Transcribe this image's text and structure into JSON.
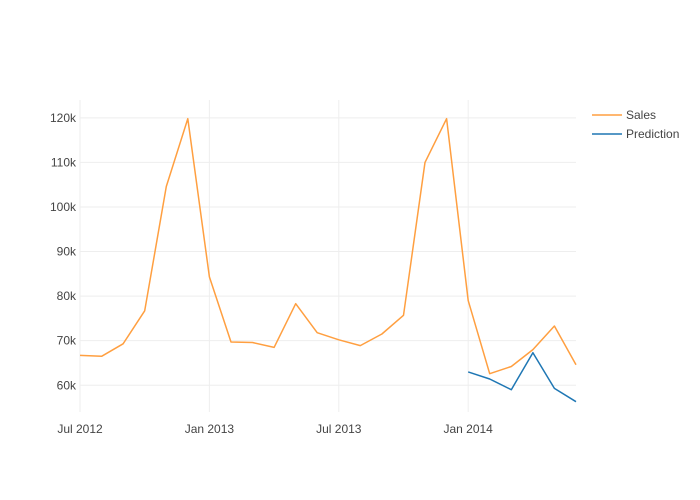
{
  "chart_data": {
    "type": "line",
    "title": "",
    "xlabel": "",
    "ylabel": "",
    "grid": true,
    "legend_position": "top-right",
    "xlim": [
      "2012-07-01",
      "2014-06-01"
    ],
    "ylim": [
      54000,
      124000
    ],
    "x_tick_labels": [
      {
        "date": "2012-07-01",
        "label": "Jul 2012"
      },
      {
        "date": "2013-01-01",
        "label": "Jan 2013"
      },
      {
        "date": "2013-07-01",
        "label": "Jul 2013"
      },
      {
        "date": "2014-01-01",
        "label": "Jan 2014"
      }
    ],
    "y_tick_labels": [
      {
        "value": 60000,
        "label": "60k"
      },
      {
        "value": 70000,
        "label": "70k"
      },
      {
        "value": 80000,
        "label": "80k"
      },
      {
        "value": 90000,
        "label": "90k"
      },
      {
        "value": 100000,
        "label": "100k"
      },
      {
        "value": 110000,
        "label": "110k"
      },
      {
        "value": 120000,
        "label": "120k"
      }
    ],
    "series": [
      {
        "name": "Sales",
        "color": "#ff9f40",
        "x": [
          "2012-07-01",
          "2012-08-01",
          "2012-09-01",
          "2012-10-01",
          "2012-11-01",
          "2012-12-01",
          "2013-01-01",
          "2013-02-01",
          "2013-03-01",
          "2013-04-01",
          "2013-05-01",
          "2013-06-01",
          "2013-07-01",
          "2013-08-01",
          "2013-09-01",
          "2013-10-01",
          "2013-11-01",
          "2013-12-01",
          "2014-01-01",
          "2014-02-01",
          "2014-03-01",
          "2014-04-01",
          "2014-05-01",
          "2014-06-01"
        ],
        "y": [
          66700,
          66500,
          69300,
          76700,
          104600,
          119800,
          84300,
          69700,
          69600,
          68500,
          78300,
          71800,
          70200,
          68900,
          71500,
          75700,
          110000,
          119800,
          79000,
          62600,
          64200,
          68000,
          73300,
          64600
        ]
      },
      {
        "name": "Prediction",
        "color": "#1f77b4",
        "x": [
          "2014-01-01",
          "2014-02-01",
          "2014-03-01",
          "2014-04-01",
          "2014-05-01",
          "2014-06-01"
        ],
        "y": [
          63000,
          61400,
          59000,
          67300,
          59300,
          56300
        ]
      }
    ]
  }
}
